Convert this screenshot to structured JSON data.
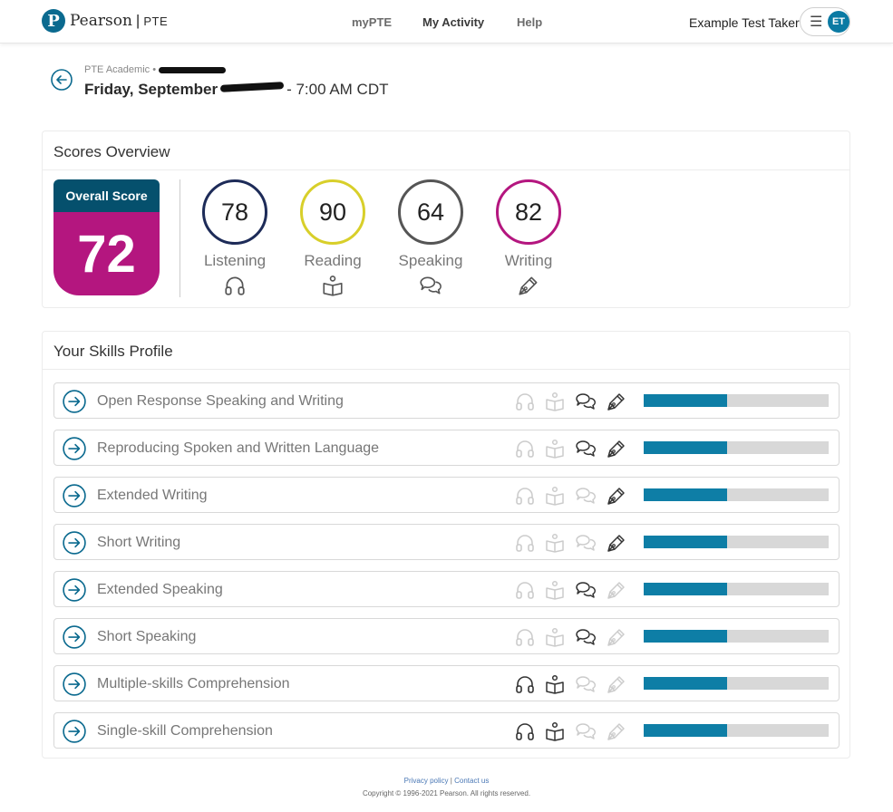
{
  "header": {
    "brand": "Pearson",
    "brand_sub": "PTE",
    "nav": [
      {
        "label": "myPTE",
        "active": false
      },
      {
        "label": "My Activity",
        "active": true
      },
      {
        "label": "Help",
        "active": false
      }
    ],
    "user_name": "Example Test Taker",
    "avatar_initials": "ET"
  },
  "test": {
    "type": "PTE Academic •",
    "date": "Friday, September",
    "time": "- 7:00 AM CDT"
  },
  "scores_overview": {
    "title": "Scores Overview",
    "overall_label": "Overall Score",
    "overall_score": "72",
    "skills": [
      {
        "name": "Listening",
        "score": "78",
        "color": "#1d2b58",
        "icon": "headphones-icon"
      },
      {
        "name": "Reading",
        "score": "90",
        "color": "#d8cf2a",
        "icon": "book-icon"
      },
      {
        "name": "Speaking",
        "score": "64",
        "color": "#555555",
        "icon": "speech-bubbles-icon"
      },
      {
        "name": "Writing",
        "score": "82",
        "color": "#b4167f",
        "icon": "pen-icon"
      }
    ]
  },
  "skills_profile": {
    "title": "Your Skills Profile",
    "rows": [
      {
        "label": "Open Response Speaking and Writing",
        "active": [
          false,
          false,
          true,
          true
        ],
        "progress": 0.45
      },
      {
        "label": "Reproducing Spoken and Written Language",
        "active": [
          false,
          false,
          true,
          true
        ],
        "progress": 0.45
      },
      {
        "label": "Extended Writing",
        "active": [
          false,
          false,
          false,
          true
        ],
        "progress": 0.45
      },
      {
        "label": "Short Writing",
        "active": [
          false,
          false,
          false,
          true
        ],
        "progress": 0.45
      },
      {
        "label": "Extended Speaking",
        "active": [
          false,
          false,
          true,
          false
        ],
        "progress": 0.45
      },
      {
        "label": "Short Speaking",
        "active": [
          false,
          false,
          true,
          false
        ],
        "progress": 0.45
      },
      {
        "label": "Multiple-skills Comprehension",
        "active": [
          true,
          true,
          false,
          false
        ],
        "progress": 0.45
      },
      {
        "label": "Single-skill Comprehension",
        "active": [
          true,
          true,
          false,
          false
        ],
        "progress": 0.45
      }
    ]
  },
  "colors": {
    "accent": "#0e7ea6",
    "overall_top": "#05506d",
    "overall_bottom": "#b4167f",
    "icon_active": "#333333",
    "icon_inactive": "#cccccc"
  },
  "footer": {
    "privacy": "Privacy policy",
    "separator": "|",
    "contact": "Contact us",
    "copyright": "Copyright © 1996-2021 Pearson. All rights reserved."
  }
}
